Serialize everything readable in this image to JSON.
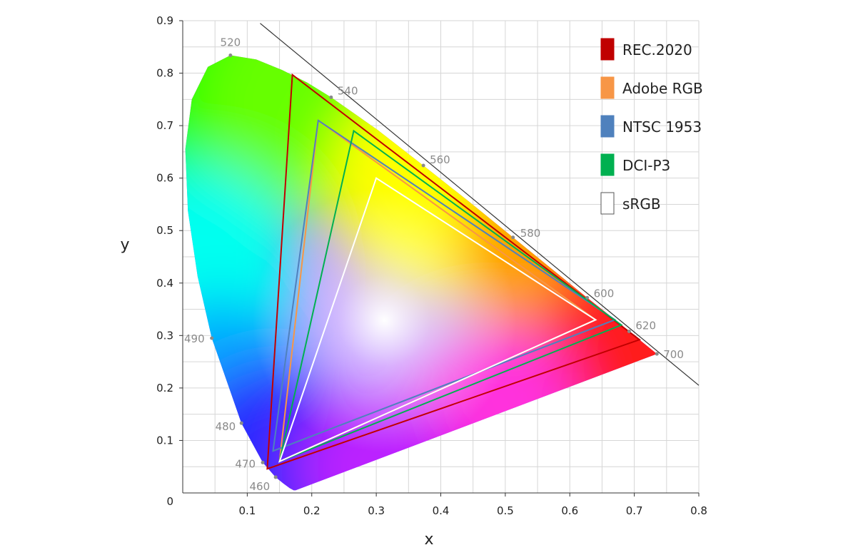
{
  "chart_data": {
    "type": "scatter",
    "title": "",
    "xlabel": "x",
    "ylabel": "y",
    "xlim": [
      0,
      0.8
    ],
    "ylim": [
      0,
      0.9
    ],
    "x_ticks": [
      "0.1",
      "0.2",
      "0.3",
      "0.4",
      "0.5",
      "0.6",
      "0.7",
      "0.8"
    ],
    "y_ticks": [
      "0",
      "0.1",
      "0.2",
      "0.3",
      "0.4",
      "0.5",
      "0.6",
      "0.7",
      "0.8",
      "0.9"
    ],
    "grid": true,
    "legend_position": "top-right",
    "spectral_locus": [
      [
        0.175,
        0.005
      ],
      [
        0.172,
        0.005
      ],
      [
        0.166,
        0.009
      ],
      [
        0.156,
        0.018
      ],
      [
        0.144,
        0.03
      ],
      [
        0.124,
        0.058
      ],
      [
        0.091,
        0.133
      ],
      [
        0.045,
        0.295
      ],
      [
        0.023,
        0.413
      ],
      [
        0.008,
        0.538
      ],
      [
        0.004,
        0.655
      ],
      [
        0.014,
        0.75
      ],
      [
        0.039,
        0.812
      ],
      [
        0.074,
        0.834
      ],
      [
        0.114,
        0.826
      ],
      [
        0.154,
        0.806
      ],
      [
        0.193,
        0.782
      ],
      [
        0.23,
        0.754
      ],
      [
        0.302,
        0.692
      ],
      [
        0.373,
        0.624
      ],
      [
        0.444,
        0.555
      ],
      [
        0.512,
        0.487
      ],
      [
        0.575,
        0.424
      ],
      [
        0.627,
        0.372
      ],
      [
        0.666,
        0.334
      ],
      [
        0.692,
        0.308
      ],
      [
        0.715,
        0.285
      ],
      [
        0.735,
        0.265
      ]
    ],
    "wavelength_points": [
      {
        "label": "460",
        "x": 0.144,
        "y": 0.03
      },
      {
        "label": "470",
        "x": 0.124,
        "y": 0.058
      },
      {
        "label": "480",
        "x": 0.091,
        "y": 0.133
      },
      {
        "label": "490",
        "x": 0.045,
        "y": 0.295
      },
      {
        "label": "520",
        "x": 0.074,
        "y": 0.834
      },
      {
        "label": "540",
        "x": 0.23,
        "y": 0.754
      },
      {
        "label": "560",
        "x": 0.373,
        "y": 0.624
      },
      {
        "label": "580",
        "x": 0.512,
        "y": 0.487
      },
      {
        "label": "600",
        "x": 0.627,
        "y": 0.372
      },
      {
        "label": "620",
        "x": 0.692,
        "y": 0.308
      },
      {
        "label": "700",
        "x": 0.735,
        "y": 0.265
      }
    ],
    "reference_line": [
      [
        0.12,
        0.895
      ],
      [
        0.8,
        0.205
      ]
    ],
    "white_point": [
      0.3127,
      0.329
    ],
    "series": [
      {
        "name": "REC.2020",
        "color": "#c00000",
        "points": [
          [
            0.708,
            0.292
          ],
          [
            0.17,
            0.797
          ],
          [
            0.131,
            0.046
          ]
        ]
      },
      {
        "name": "Adobe RGB",
        "color": "#f79646",
        "points": [
          [
            0.64,
            0.33
          ],
          [
            0.21,
            0.71
          ],
          [
            0.15,
            0.06
          ]
        ]
      },
      {
        "name": "NTSC 1953",
        "color": "#4f81bd",
        "points": [
          [
            0.67,
            0.33
          ],
          [
            0.21,
            0.71
          ],
          [
            0.14,
            0.08
          ]
        ]
      },
      {
        "name": "DCI-P3",
        "color": "#00b050",
        "points": [
          [
            0.68,
            0.32
          ],
          [
            0.265,
            0.69
          ],
          [
            0.15,
            0.06
          ]
        ]
      },
      {
        "name": "sRGB",
        "color": "#ffffff",
        "points": [
          [
            0.64,
            0.33
          ],
          [
            0.3,
            0.6
          ],
          [
            0.15,
            0.06
          ]
        ]
      }
    ]
  }
}
